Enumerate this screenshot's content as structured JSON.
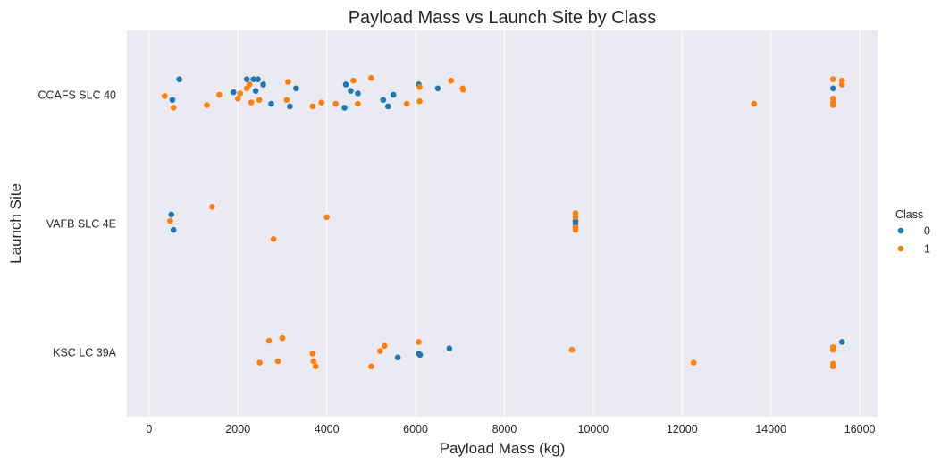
{
  "chart_data": {
    "type": "scatter",
    "title": "Payload Mass vs Launch Site by Class",
    "xlabel": "Payload Mass (kg)",
    "ylabel": "Launch Site",
    "xlim": [
      -500,
      16400
    ],
    "xticks": [
      0,
      2000,
      4000,
      6000,
      8000,
      10000,
      12000,
      14000,
      16000
    ],
    "categories": [
      "CCAFS SLC 40",
      "VAFB SLC 4E",
      "KSC LC 39A"
    ],
    "grid": "vertical",
    "legend": {
      "title": "Class",
      "placement": "right"
    },
    "colors": {
      "0": "#1f77b4",
      "1": "#ff7f0e",
      "background": "#eaeaf2",
      "grid": "#ffffff"
    },
    "series": [
      {
        "name": "0",
        "points": [
          {
            "site": "CCAFS SLC 40",
            "x": 680,
            "jitter": -0.12
          },
          {
            "site": "CCAFS SLC 40",
            "x": 525,
            "jitter": 0.04
          },
          {
            "site": "CCAFS SLC 40",
            "x": 1900,
            "jitter": -0.02
          },
          {
            "site": "CCAFS SLC 40",
            "x": 2200,
            "jitter": -0.12
          },
          {
            "site": "CCAFS SLC 40",
            "x": 2350,
            "jitter": -0.12
          },
          {
            "site": "CCAFS SLC 40",
            "x": 2450,
            "jitter": -0.12
          },
          {
            "site": "CCAFS SLC 40",
            "x": 2570,
            "jitter": -0.08
          },
          {
            "site": "CCAFS SLC 40",
            "x": 2400,
            "jitter": -0.03
          },
          {
            "site": "CCAFS SLC 40",
            "x": 2750,
            "jitter": 0.07
          },
          {
            "site": "CCAFS SLC 40",
            "x": 3170,
            "jitter": 0.09
          },
          {
            "site": "CCAFS SLC 40",
            "x": 3310,
            "jitter": -0.05
          },
          {
            "site": "CCAFS SLC 40",
            "x": 4400,
            "jitter": 0.1
          },
          {
            "site": "CCAFS SLC 40",
            "x": 4430,
            "jitter": -0.08
          },
          {
            "site": "CCAFS SLC 40",
            "x": 4540,
            "jitter": -0.03
          },
          {
            "site": "CCAFS SLC 40",
            "x": 4700,
            "jitter": -0.01
          },
          {
            "site": "CCAFS SLC 40",
            "x": 5270,
            "jitter": 0.04
          },
          {
            "site": "CCAFS SLC 40",
            "x": 5380,
            "jitter": 0.09
          },
          {
            "site": "CCAFS SLC 40",
            "x": 5500,
            "jitter": 0.0
          },
          {
            "site": "CCAFS SLC 40",
            "x": 6070,
            "jitter": -0.08
          },
          {
            "site": "CCAFS SLC 40",
            "x": 6500,
            "jitter": -0.05
          },
          {
            "site": "CCAFS SLC 40",
            "x": 15400,
            "jitter": -0.05
          },
          {
            "site": "VAFB SLC 4E",
            "x": 500,
            "jitter": -0.07
          },
          {
            "site": "VAFB SLC 4E",
            "x": 550,
            "jitter": 0.05
          },
          {
            "site": "VAFB SLC 4E",
            "x": 9600,
            "jitter": -0.02
          },
          {
            "site": "VAFB SLC 4E",
            "x": 9600,
            "jitter": 0.0
          },
          {
            "site": "KSC LC 39A",
            "x": 15600,
            "jitter": -0.08
          },
          {
            "site": "KSC LC 39A",
            "x": 6760,
            "jitter": -0.03
          },
          {
            "site": "KSC LC 39A",
            "x": 6070,
            "jitter": 0.01
          },
          {
            "site": "KSC LC 39A",
            "x": 6100,
            "jitter": 0.02
          },
          {
            "site": "KSC LC 39A",
            "x": 5600,
            "jitter": 0.04
          }
        ]
      },
      {
        "name": "1",
        "points": [
          {
            "site": "CCAFS SLC 40",
            "x": 350,
            "jitter": 0.01
          },
          {
            "site": "CCAFS SLC 40",
            "x": 550,
            "jitter": 0.1
          },
          {
            "site": "CCAFS SLC 40",
            "x": 1300,
            "jitter": 0.08
          },
          {
            "site": "CCAFS SLC 40",
            "x": 1580,
            "jitter": 0.0
          },
          {
            "site": "CCAFS SLC 40",
            "x": 2000,
            "jitter": 0.03
          },
          {
            "site": "CCAFS SLC 40",
            "x": 2050,
            "jitter": -0.01
          },
          {
            "site": "CCAFS SLC 40",
            "x": 2200,
            "jitter": -0.05
          },
          {
            "site": "CCAFS SLC 40",
            "x": 2260,
            "jitter": -0.08
          },
          {
            "site": "CCAFS SLC 40",
            "x": 2300,
            "jitter": 0.06
          },
          {
            "site": "CCAFS SLC 40",
            "x": 2480,
            "jitter": 0.04
          },
          {
            "site": "CCAFS SLC 40",
            "x": 3130,
            "jitter": -0.1
          },
          {
            "site": "CCAFS SLC 40",
            "x": 3100,
            "jitter": 0.04
          },
          {
            "site": "CCAFS SLC 40",
            "x": 3680,
            "jitter": 0.09
          },
          {
            "site": "CCAFS SLC 40",
            "x": 3880,
            "jitter": 0.06
          },
          {
            "site": "CCAFS SLC 40",
            "x": 4200,
            "jitter": 0.07
          },
          {
            "site": "CCAFS SLC 40",
            "x": 4600,
            "jitter": -0.11
          },
          {
            "site": "CCAFS SLC 40",
            "x": 4700,
            "jitter": 0.07
          },
          {
            "site": "CCAFS SLC 40",
            "x": 5000,
            "jitter": -0.13
          },
          {
            "site": "CCAFS SLC 40",
            "x": 5800,
            "jitter": 0.07
          },
          {
            "site": "CCAFS SLC 40",
            "x": 6090,
            "jitter": -0.06
          },
          {
            "site": "CCAFS SLC 40",
            "x": 6090,
            "jitter": 0.05
          },
          {
            "site": "CCAFS SLC 40",
            "x": 6800,
            "jitter": -0.11
          },
          {
            "site": "CCAFS SLC 40",
            "x": 7060,
            "jitter": -0.05
          },
          {
            "site": "CCAFS SLC 40",
            "x": 7070,
            "jitter": -0.04
          },
          {
            "site": "CCAFS SLC 40",
            "x": 13620,
            "jitter": 0.07
          },
          {
            "site": "CCAFS SLC 40",
            "x": 15400,
            "jitter": -0.12
          },
          {
            "site": "CCAFS SLC 40",
            "x": 15400,
            "jitter": 0.03
          },
          {
            "site": "CCAFS SLC 40",
            "x": 15400,
            "jitter": 0.06
          },
          {
            "site": "CCAFS SLC 40",
            "x": 15400,
            "jitter": 0.08
          },
          {
            "site": "CCAFS SLC 40",
            "x": 15600,
            "jitter": -0.11
          },
          {
            "site": "CCAFS SLC 40",
            "x": 15600,
            "jitter": -0.08
          },
          {
            "site": "VAFB SLC 4E",
            "x": 1420,
            "jitter": -0.13
          },
          {
            "site": "VAFB SLC 4E",
            "x": 475,
            "jitter": -0.02
          },
          {
            "site": "VAFB SLC 4E",
            "x": 4000,
            "jitter": -0.05
          },
          {
            "site": "VAFB SLC 4E",
            "x": 2800,
            "jitter": 0.12
          },
          {
            "site": "VAFB SLC 4E",
            "x": 9600,
            "jitter": -0.08
          },
          {
            "site": "VAFB SLC 4E",
            "x": 9600,
            "jitter": -0.05
          },
          {
            "site": "VAFB SLC 4E",
            "x": 9600,
            "jitter": 0.03
          },
          {
            "site": "VAFB SLC 4E",
            "x": 9600,
            "jitter": 0.05
          },
          {
            "site": "KSC LC 39A",
            "x": 2700,
            "jitter": -0.09
          },
          {
            "site": "KSC LC 39A",
            "x": 3000,
            "jitter": -0.11
          },
          {
            "site": "KSC LC 39A",
            "x": 2490,
            "jitter": 0.08
          },
          {
            "site": "KSC LC 39A",
            "x": 2900,
            "jitter": 0.07
          },
          {
            "site": "KSC LC 39A",
            "x": 3680,
            "jitter": 0.01
          },
          {
            "site": "KSC LC 39A",
            "x": 3700,
            "jitter": 0.07
          },
          {
            "site": "KSC LC 39A",
            "x": 3750,
            "jitter": 0.11
          },
          {
            "site": "KSC LC 39A",
            "x": 5000,
            "jitter": 0.11
          },
          {
            "site": "KSC LC 39A",
            "x": 5200,
            "jitter": -0.01
          },
          {
            "site": "KSC LC 39A",
            "x": 5300,
            "jitter": -0.05
          },
          {
            "site": "KSC LC 39A",
            "x": 6070,
            "jitter": -0.08
          },
          {
            "site": "KSC LC 39A",
            "x": 9520,
            "jitter": -0.02
          },
          {
            "site": "KSC LC 39A",
            "x": 12260,
            "jitter": 0.08
          },
          {
            "site": "KSC LC 39A",
            "x": 15400,
            "jitter": -0.04
          },
          {
            "site": "KSC LC 39A",
            "x": 15400,
            "jitter": -0.02
          },
          {
            "site": "KSC LC 39A",
            "x": 15400,
            "jitter": 0.09
          },
          {
            "site": "KSC LC 39A",
            "x": 15400,
            "jitter": 0.11
          }
        ]
      }
    ]
  }
}
